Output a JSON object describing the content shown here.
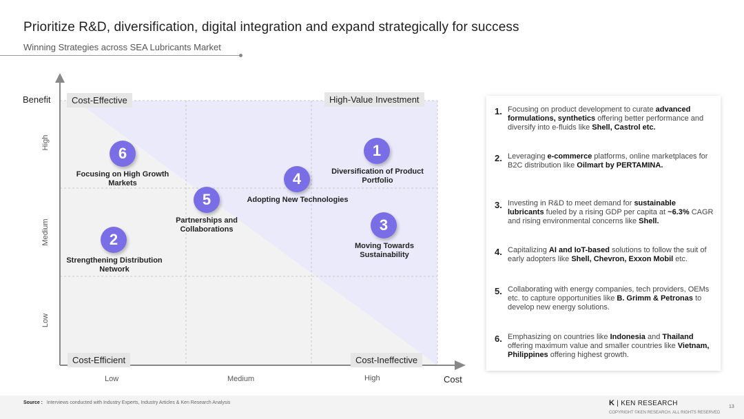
{
  "header": {
    "title": "Prioritize R&D, diversification, digital integration and expand strategically for success",
    "subtitle": "Winning Strategies across SEA Lubricants Market"
  },
  "matrix": {
    "y_axis_title": "Benefit",
    "x_axis_title": "Cost",
    "y_levels": [
      "High",
      "Medium",
      "Low"
    ],
    "x_levels": [
      "Low",
      "Medium",
      "High"
    ],
    "quadrants": {
      "top_left": "Cost-Effective",
      "top_right": "High-Value Investment",
      "bottom_left": "Cost-Efficient",
      "bottom_right": "Cost-Ineffective"
    },
    "strategies": [
      {
        "num": "1",
        "label": "Diversification of Product Portfolio"
      },
      {
        "num": "2",
        "label": "Strengthening Distribution Network"
      },
      {
        "num": "3",
        "label": "Moving Towards Sustainability"
      },
      {
        "num": "4",
        "label": "Adopting New Technologies"
      },
      {
        "num": "5",
        "label": "Partnerships and Collaborations"
      },
      {
        "num": "6",
        "label": "Focusing on High Growth Markets"
      }
    ],
    "colors": {
      "bubble": "#7a6ee6",
      "shade": "#ebeafb"
    }
  },
  "panel": {
    "items": [
      {
        "num": "1.",
        "html": "Focusing on product development to curate <b>advanced formulations, synthetics</b> offering better performance and diversify into e-fluids like <b>Shell, Castrol etc.</b>"
      },
      {
        "num": "2.",
        "html": "Leveraging <b>e-commerce</b> platforms, online marketplaces for B2C distribution like <b>Oilmart by PERTAMINA.</b>"
      },
      {
        "num": "3.",
        "html": "Investing in R&amp;D to meet demand for <b>sustainable lubricants</b> fueled by a rising GDP per capita at <b>~6.3%</b> CAGR and rising environmental concerns like <b>Shell.</b>"
      },
      {
        "num": "4.",
        "html": "Capitalizing <b>AI and IoT-based</b> solutions to follow the suit of early adopters like <b>Shell, Chevron, Exxon Mobil</b> etc."
      },
      {
        "num": "5.",
        "html": "Collaborating with energy companies, tech providers, OEMs etc. to capture opportunities like <b>B. Grimm &amp; Petronas</b> to develop new energy solutions."
      },
      {
        "num": "6.",
        "html": "Emphasizing on countries like <b>Indonesia</b> and <b>Thailand</b> offering maximum value and smaller countries like <b>Vietnam, Philippines</b> offering highest growth."
      }
    ]
  },
  "footer": {
    "source_label": "Source :",
    "source_text": "Interviews conducted with Industry Experts, Industry Articles & Ken Research Analysis",
    "logo_mark": "K",
    "logo_text": "| KEN RESEARCH",
    "copyright": "COPYRIGHT ©KEN RESEARCH. ALL RIGHTS RESERVED",
    "page_number": "13"
  }
}
